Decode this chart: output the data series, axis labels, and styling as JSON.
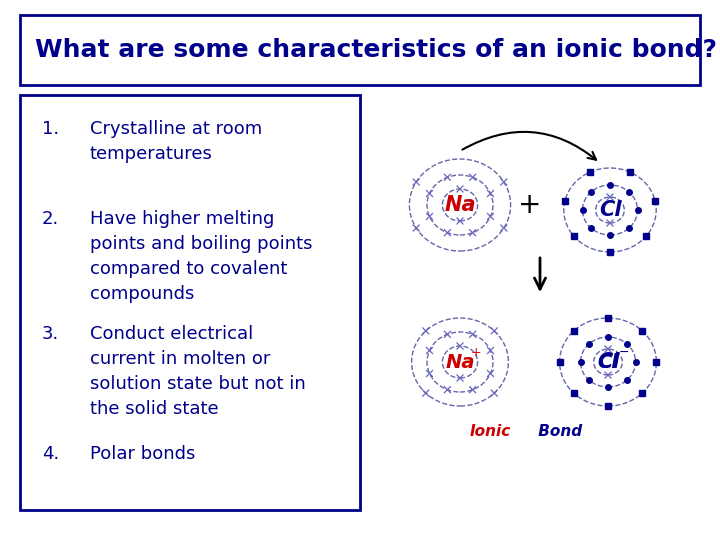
{
  "title": "What are some characteristics of an ionic bond?",
  "title_color": "#00008B",
  "title_fontsize": 18,
  "background_color": "#ffffff",
  "title_box_color": "#00008B",
  "list_items": [
    "Crystalline at room\ntemperatures",
    "Have higher melting\npoints and boiling points\ncompared to covalent\ncompounds",
    "Conduct electrical\ncurrent in molten or\nsolution state but not in\nthe solid state",
    "Polar bonds"
  ],
  "list_color": "#00008B",
  "list_fontsize": 12,
  "list_box_color": "#00008B",
  "atom_color": "#6666aa",
  "label_na_color": "#cc0000",
  "label_cl_color": "#00008B",
  "ionic_bond_color_ionic": "#cc0000",
  "ionic_bond_color_bond": "#00008B",
  "plus_color": "#000000",
  "arrow_color": "#000000",
  "dot_color": "#00008B",
  "cross_color": "#6666bb"
}
